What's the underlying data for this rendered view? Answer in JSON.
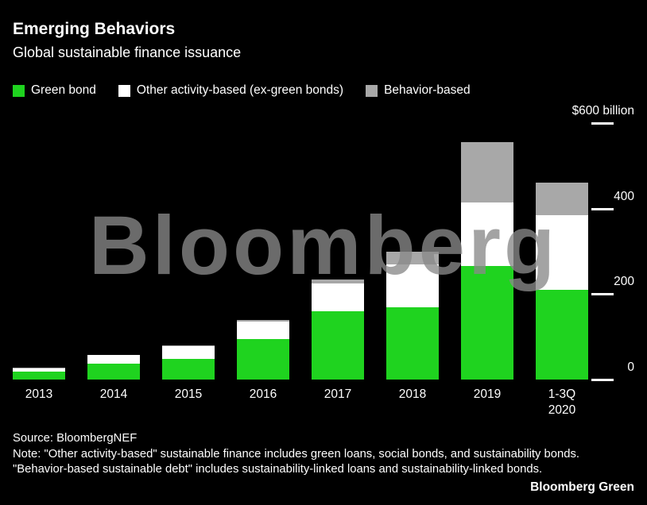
{
  "chart_data": {
    "type": "bar",
    "stacked": true,
    "title": "Emerging Behaviors",
    "subtitle": "Global sustainable finance issuance",
    "unit": "$ billion",
    "grid": false,
    "legend_position": "top",
    "watermark": "Bloomberg",
    "categories": [
      "2013",
      "2014",
      "2015",
      "2016",
      "2017",
      "2018",
      "2019",
      "1-3Q 2020"
    ],
    "series": [
      {
        "name": "Green bond",
        "color": "#1fd31f",
        "values": [
          18,
          37,
          48,
          95,
          160,
          170,
          265,
          210
        ]
      },
      {
        "name": "Other activity-based (ex-green bonds)",
        "color": "#ffffff",
        "values": [
          9,
          20,
          30,
          40,
          65,
          100,
          150,
          175
        ]
      },
      {
        "name": "Behavior-based",
        "color": "#a8a8a8",
        "values": [
          1,
          1,
          2,
          5,
          10,
          30,
          140,
          75
        ]
      }
    ],
    "y_axis": {
      "ylim": [
        0,
        600
      ],
      "ticks": [
        {
          "value": 600,
          "label": "$600 billion"
        },
        {
          "value": 400,
          "label": "400"
        },
        {
          "value": 200,
          "label": "200"
        },
        {
          "value": 0,
          "label": "0"
        }
      ]
    }
  },
  "footer": {
    "source": "Source: BloombergNEF",
    "note": "Note: \"Other activity-based\" sustainable finance includes green loans, social bonds, and sustainability bonds. \"Behavior-based sustainable debt\" includes sustainability-linked loans and sustainability-linked bonds.",
    "brand": "Bloomberg Green"
  }
}
